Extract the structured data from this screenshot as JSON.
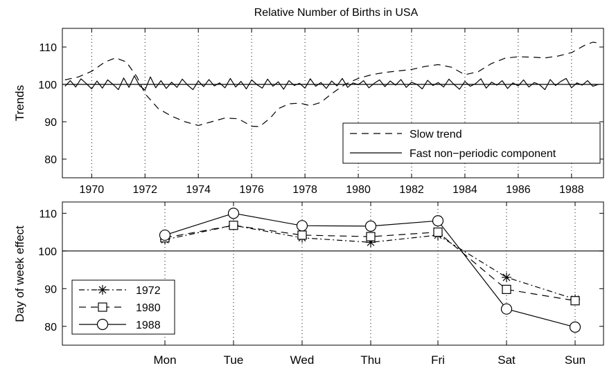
{
  "title": "Relative Number of Births in USA",
  "chart_data": [
    {
      "type": "line",
      "ylabel": "Trends",
      "xlim": [
        1968.9,
        1989.2
      ],
      "ylim": [
        75,
        115
      ],
      "xticks": [
        "1970",
        "1972",
        "1974",
        "1976",
        "1978",
        "1980",
        "1982",
        "1984",
        "1986",
        "1988"
      ],
      "yticks": [
        "80",
        "90",
        "100",
        "110"
      ],
      "grid": "vertical dotted",
      "legend_position": "bottom-right",
      "reference_line": 100,
      "series": [
        {
          "name": "Slow trend",
          "style": "dashed",
          "x": [
            1969.0,
            1969.5,
            1970.0,
            1970.5,
            1970.9,
            1971.3,
            1971.7,
            1972.0,
            1972.5,
            1973.0,
            1973.5,
            1974.0,
            1974.5,
            1975.0,
            1975.5,
            1976.0,
            1976.3,
            1976.7,
            1977.0,
            1977.4,
            1977.8,
            1978.2,
            1978.6,
            1979.0,
            1979.5,
            1980.0,
            1980.5,
            1981.0,
            1981.5,
            1982.0,
            1982.5,
            1983.0,
            1983.5,
            1984.0,
            1984.5,
            1985.0,
            1985.5,
            1986.0,
            1986.5,
            1987.0,
            1987.5,
            1988.0,
            1988.5,
            1988.8,
            1989.1
          ],
          "y": [
            101.2,
            102.0,
            103.5,
            106.0,
            107.1,
            106.0,
            102.0,
            97.5,
            93.5,
            91.5,
            90.0,
            89.0,
            90.0,
            91.0,
            90.8,
            88.8,
            88.7,
            91.0,
            93.5,
            94.8,
            95.0,
            94.3,
            95.2,
            97.5,
            100.0,
            101.6,
            102.6,
            103.2,
            103.6,
            104.0,
            104.8,
            105.3,
            104.6,
            102.6,
            103.4,
            105.6,
            107.0,
            107.4,
            107.3,
            107.1,
            107.6,
            108.5,
            110.5,
            111.3,
            111.0
          ]
        },
        {
          "name": "Fast non−periodic component",
          "style": "solid",
          "x": [
            1969.0,
            1969.2,
            1969.4,
            1969.6,
            1969.8,
            1970.0,
            1970.2,
            1970.4,
            1970.6,
            1970.8,
            1971.0,
            1971.2,
            1971.4,
            1971.6,
            1971.8,
            1972.0,
            1972.2,
            1972.4,
            1972.6,
            1972.8,
            1973.0,
            1973.2,
            1973.4,
            1973.6,
            1973.8,
            1974.0,
            1974.2,
            1974.4,
            1974.6,
            1974.8,
            1975.0,
            1975.2,
            1975.4,
            1975.6,
            1975.8,
            1976.0,
            1976.2,
            1976.4,
            1976.6,
            1976.8,
            1977.0,
            1977.2,
            1977.4,
            1977.6,
            1977.8,
            1978.0,
            1978.2,
            1978.4,
            1978.6,
            1978.8,
            1979.0,
            1979.2,
            1979.4,
            1979.6,
            1979.8,
            1980.0,
            1980.2,
            1980.4,
            1980.6,
            1980.8,
            1981.0,
            1981.2,
            1981.4,
            1981.6,
            1981.8,
            1982.0,
            1982.2,
            1982.4,
            1982.6,
            1982.8,
            1983.0,
            1983.2,
            1983.4,
            1983.6,
            1983.8,
            1984.0,
            1984.2,
            1984.4,
            1984.6,
            1984.8,
            1985.0,
            1985.2,
            1985.4,
            1985.6,
            1985.8,
            1986.0,
            1986.2,
            1986.4,
            1986.6,
            1986.8,
            1987.0,
            1987.2,
            1987.4,
            1987.6,
            1987.8,
            1988.0,
            1988.2,
            1988.4,
            1988.6,
            1988.8,
            1989.0
          ],
          "y": [
            99.5,
            101.0,
            99.3,
            101.5,
            100.2,
            98.8,
            100.9,
            99.0,
            101.2,
            100.0,
            98.6,
            101.7,
            99.2,
            102.3,
            99.6,
            98.5,
            102.0,
            99.1,
            101.0,
            98.9,
            100.6,
            99.2,
            101.4,
            99.8,
            98.6,
            100.9,
            99.4,
            101.3,
            99.6,
            100.4,
            99.1,
            101.6,
            99.3,
            100.8,
            98.8,
            101.2,
            99.9,
            99.0,
            101.4,
            99.5,
            100.7,
            98.7,
            101.0,
            99.7,
            100.3,
            99.0,
            101.5,
            99.5,
            100.5,
            98.9,
            100.9,
            99.6,
            101.6,
            99.2,
            100.4,
            99.9,
            101.0,
            99.1,
            100.3,
            101.2,
            99.4,
            100.9,
            99.8,
            101.3,
            99.2,
            100.6,
            100.0,
            98.8,
            101.1,
            99.7,
            100.5,
            99.3,
            101.4,
            99.9,
            98.7,
            100.8,
            99.5,
            100.2,
            101.5,
            99.0,
            100.6,
            99.8,
            101.0,
            98.9,
            100.4,
            99.6,
            101.2,
            99.3,
            100.5,
            99.9,
            98.6,
            101.3,
            99.7,
            100.8,
            101.6,
            99.1,
            100.4,
            99.8,
            101.0,
            99.5,
            100.0
          ]
        }
      ]
    },
    {
      "type": "line",
      "ylabel": "Day of week effect",
      "categories": [
        "Mon",
        "Tue",
        "Wed",
        "Thu",
        "Fri",
        "Sat",
        "Sun"
      ],
      "ylim": [
        75,
        113
      ],
      "yticks": [
        "80",
        "90",
        "100",
        "110"
      ],
      "grid": "vertical dotted",
      "legend_position": "bottom-left",
      "reference_line": 100,
      "series": [
        {
          "name": "1972",
          "style": "dash-dot",
          "marker": "asterisk",
          "values": [
            103.0,
            106.8,
            103.5,
            102.3,
            104.2,
            93.0,
            87.2
          ]
        },
        {
          "name": "1980",
          "style": "dashed",
          "marker": "square",
          "values": [
            103.5,
            106.8,
            104.2,
            103.8,
            105.0,
            89.8,
            86.8
          ]
        },
        {
          "name": "1988",
          "style": "solid",
          "marker": "circle",
          "values": [
            104.2,
            110.0,
            106.7,
            106.6,
            108.0,
            84.6,
            79.8
          ]
        }
      ]
    }
  ]
}
